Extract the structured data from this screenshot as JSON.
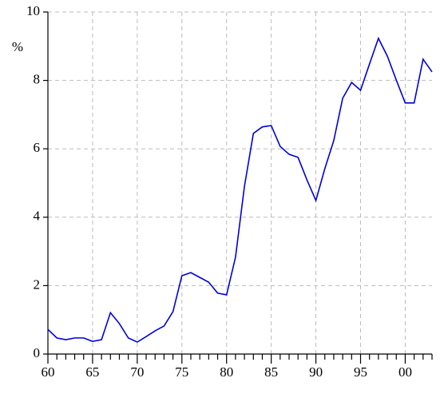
{
  "chart_data": {
    "type": "line",
    "y_label": "%",
    "x": [
      1960,
      1961,
      1962,
      1963,
      1964,
      1965,
      1966,
      1967,
      1968,
      1969,
      1970,
      1971,
      1972,
      1973,
      1974,
      1975,
      1976,
      1977,
      1978,
      1979,
      1980,
      1981,
      1982,
      1983,
      1984,
      1985,
      1986,
      1987,
      1988,
      1989,
      1990,
      1991,
      1992,
      1993,
      1994,
      1995,
      1996,
      1997,
      1998,
      1999,
      2000,
      2001,
      2002,
      2003
    ],
    "series": [
      {
        "color": "#0000dd",
        "values": [
          0.72,
          0.47,
          0.42,
          0.47,
          0.47,
          0.37,
          0.42,
          1.21,
          0.89,
          0.47,
          0.35,
          0.51,
          0.68,
          0.82,
          1.24,
          2.29,
          2.38,
          2.24,
          2.1,
          1.78,
          1.73,
          2.83,
          4.9,
          6.45,
          6.64,
          6.68,
          6.07,
          5.84,
          5.75,
          5.09,
          4.49,
          5.42,
          6.24,
          7.48,
          7.94,
          7.71,
          8.48,
          9.23,
          8.71,
          8.01,
          7.34,
          7.34,
          8.62,
          8.25
        ]
      }
    ],
    "xlim": [
      1960,
      2003
    ],
    "xticks": [
      {
        "value": 1960,
        "label": "60"
      },
      {
        "value": 1965,
        "label": "65"
      },
      {
        "value": 1970,
        "label": "70"
      },
      {
        "value": 1975,
        "label": "75"
      },
      {
        "value": 1980,
        "label": "80"
      },
      {
        "value": 1985,
        "label": "85"
      },
      {
        "value": 1990,
        "label": "90"
      },
      {
        "value": 1995,
        "label": "95"
      },
      {
        "value": 2000,
        "label": "00"
      }
    ],
    "xminorticks": [
      1961,
      1962,
      1963,
      1964,
      1966,
      1967,
      1968,
      1969,
      1971,
      1972,
      1973,
      1974,
      1976,
      1977,
      1978,
      1979,
      1981,
      1982,
      1983,
      1984,
      1986,
      1987,
      1988,
      1989,
      1991,
      1992,
      1993,
      1994,
      1996,
      1997,
      1998,
      1999,
      2001,
      2002,
      2003
    ],
    "ylim": [
      0,
      10
    ],
    "yticks": [
      0,
      2,
      4,
      6,
      8,
      10
    ],
    "grid": true
  }
}
